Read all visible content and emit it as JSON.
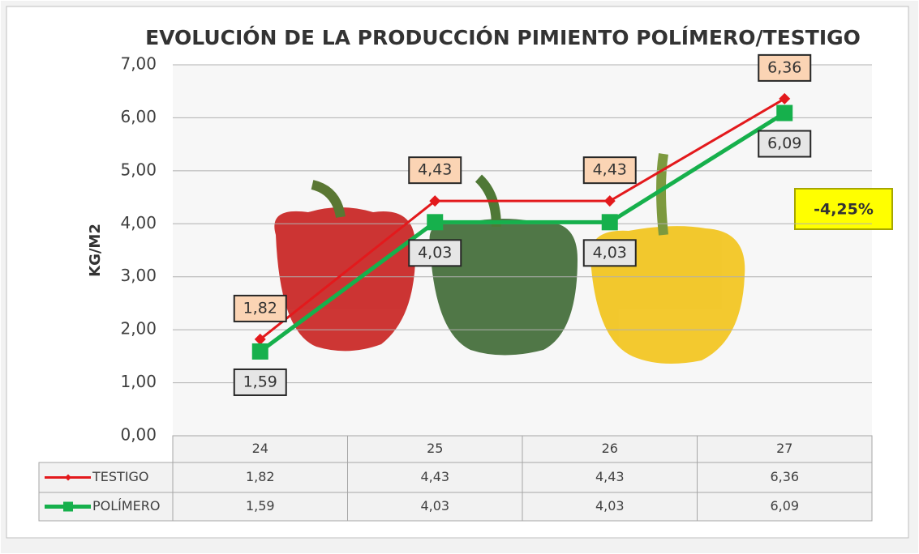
{
  "chart_data": {
    "type": "line",
    "title": "EVOLUCIÓN DE LA PRODUCCIÓN PIMIENTO POLÍMERO/TESTIGO",
    "y_label": "KG/M2",
    "categories": [
      "24",
      "25",
      "26",
      "27"
    ],
    "series": [
      {
        "name": "TESTIGO",
        "color": "#e3191c",
        "values": [
          1.82,
          4.43,
          4.43,
          6.36
        ],
        "value_labels": [
          "1,82",
          "4,43",
          "4,43",
          "6,36"
        ]
      },
      {
        "name": "POLÍMERO",
        "color": "#16b04c",
        "values": [
          1.59,
          4.03,
          4.03,
          6.09
        ],
        "value_labels": [
          "1,59",
          "4,03",
          "4,03",
          "6,09"
        ]
      }
    ],
    "ylim": [
      0,
      7
    ],
    "yticks": [
      {
        "value": 0,
        "label": "0,00"
      },
      {
        "value": 1,
        "label": "1,00"
      },
      {
        "value": 2,
        "label": "2,00"
      },
      {
        "value": 3,
        "label": "3,00"
      },
      {
        "value": 4,
        "label": "4,00"
      },
      {
        "value": 5,
        "label": "5,00"
      },
      {
        "value": 6,
        "label": "6,00"
      },
      {
        "value": 7,
        "label": "7,00"
      }
    ],
    "grid": true,
    "annotation": "-4,25%"
  }
}
